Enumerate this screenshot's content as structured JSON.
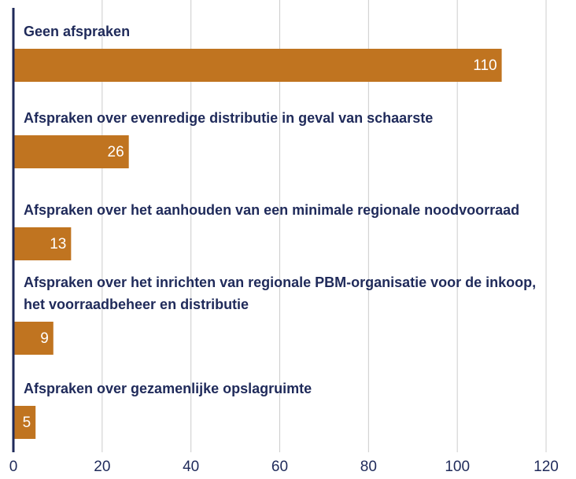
{
  "chart_data": {
    "type": "bar",
    "orientation": "horizontal",
    "categories": [
      "Geen afspraken",
      "Afspraken over evenredige distributie in geval van schaarste",
      "Afspraken over het aanhouden van een minimale regionale noodvoorraad",
      "Afspraken over het inrichten van regionale PBM-organisatie voor de inkoop, het voorraadbeheer en distributie",
      "Afspraken over gezamenlijke opslagruimte"
    ],
    "values": [
      110,
      26,
      13,
      9,
      5
    ],
    "color": "#c07420",
    "xlim": [
      0,
      120
    ],
    "xticks": [
      0,
      20,
      40,
      60,
      80,
      100,
      120
    ],
    "grid": true
  }
}
